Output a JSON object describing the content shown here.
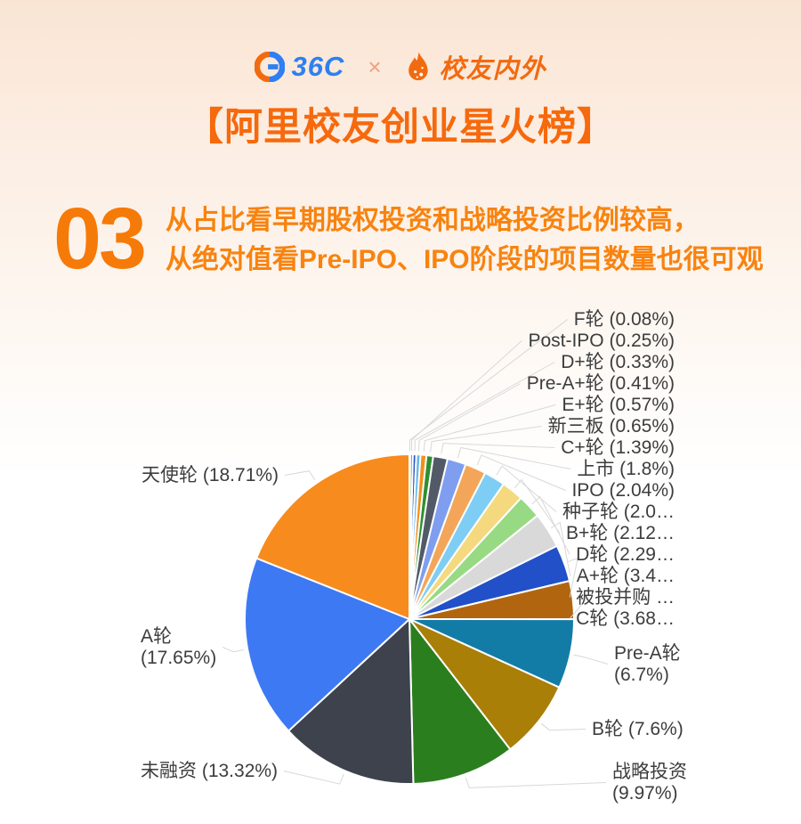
{
  "page": {
    "brand": {
      "left_logo_text": "36C",
      "separator": "×",
      "right_logo_text": "校友内外"
    },
    "title": "【阿里校友创业星火榜】",
    "section": {
      "number": "03",
      "line1": "从占比看早期股权投资和战略投资比例较高，",
      "line2": "从绝对值看Pre-IPO、IPO阶段的项目数量也很可观"
    }
  },
  "colors": {
    "accent_orange": "#f6690c",
    "logo_blue": "#2e80f0",
    "label_text": "#3d3d3d",
    "leader_line": "#d8d8d8"
  },
  "chart_data": {
    "type": "pie",
    "title": "",
    "direction": "clockwise",
    "start_angle": "12-oclock",
    "legend_position": "callout-labels",
    "slices": [
      {
        "label": "F轮",
        "value": 0.08,
        "display": "F轮 (0.08%)",
        "color": "#e3e3e3"
      },
      {
        "label": "Post-IPO",
        "value": 0.25,
        "display": "Post-IPO (0.25%)",
        "color": "#35a13c"
      },
      {
        "label": "D+轮",
        "value": 0.33,
        "display": "D+轮 (0.33%)",
        "color": "#2b55c9"
      },
      {
        "label": "Pre-A+轮",
        "value": 0.41,
        "display": "Pre-A+轮 (0.41%)",
        "color": "#67b7e8"
      },
      {
        "label": "E+轮",
        "value": 0.57,
        "display": "E+轮 (0.57%)",
        "color": "#f2901d"
      },
      {
        "label": "新三板",
        "value": 0.65,
        "display": "新三板 (0.65%)",
        "color": "#2f8f2f"
      },
      {
        "label": "C+轮",
        "value": 1.39,
        "display": "C+轮 (1.39%)",
        "color": "#525a68"
      },
      {
        "label": "上市",
        "value": 1.8,
        "display": "上市 (1.8%)",
        "color": "#7f9ef0"
      },
      {
        "label": "IPO",
        "value": 2.04,
        "display": "IPO (2.04%)",
        "color": "#f3a659"
      },
      {
        "label": "种子轮",
        "value": 2.05,
        "display": "种子轮 (2.0…",
        "color": "#7ecdf4"
      },
      {
        "label": "B+轮",
        "value": 2.12,
        "display": "B+轮 (2.12…",
        "color": "#f4d97e"
      },
      {
        "label": "D轮",
        "value": 2.29,
        "display": "D轮 (2.29…",
        "color": "#97da83"
      },
      {
        "label": "A+轮",
        "value": 3.45,
        "display": "A+轮 (3.4…",
        "color": "#d9d9d9"
      },
      {
        "label": "被投并购",
        "value": 3.55,
        "display": "被投并购 …",
        "color": "#2150c8"
      },
      {
        "label": "C轮",
        "value": 3.68,
        "display": "C轮 (3.68…",
        "color": "#b2650f"
      },
      {
        "label": "Pre-A轮",
        "value": 6.7,
        "display": [
          "Pre-A轮",
          "(6.7%)"
        ],
        "color": "#127ca6"
      },
      {
        "label": "B轮",
        "value": 7.6,
        "display": "B轮 (7.6%)",
        "color": "#a97f08"
      },
      {
        "label": "战略投资",
        "value": 9.97,
        "display": [
          "战略投资",
          "(9.97%)"
        ],
        "color": "#2b7e1d"
      },
      {
        "label": "未融资",
        "value": 13.32,
        "display": "未融资 (13.32%)",
        "color": "#3d424d"
      },
      {
        "label": "A轮",
        "value": 17.65,
        "display": [
          "A轮",
          "(17.65%)"
        ],
        "color": "#3d79f2"
      },
      {
        "label": "天使轮",
        "value": 18.71,
        "display": "天使轮 (18.71%)",
        "color": "#f78b1d"
      }
    ]
  }
}
